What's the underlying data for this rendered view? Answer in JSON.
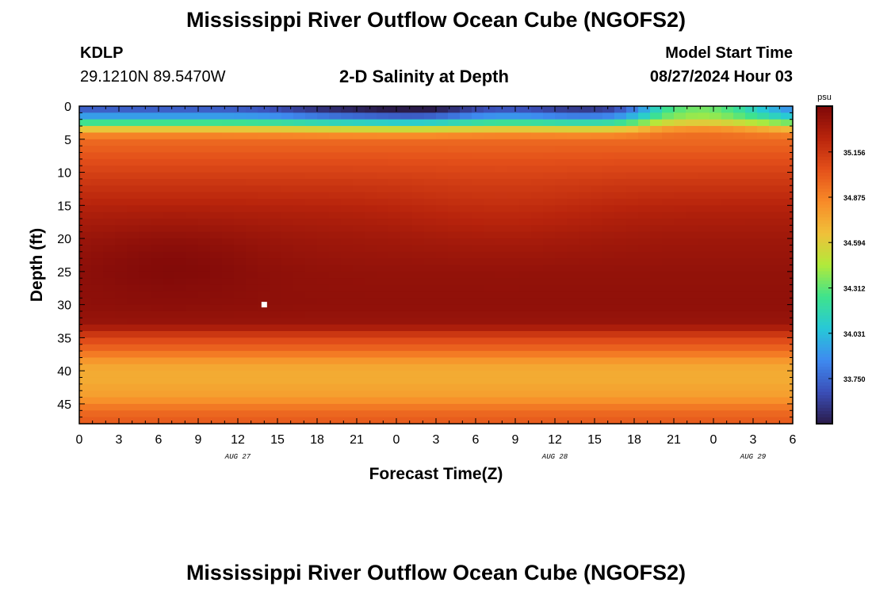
{
  "page": {
    "title": "Mississippi River Outflow Ocean Cube (NGOFS2)",
    "title_bottom": "Mississippi River Outflow Ocean Cube (NGOFS2)",
    "station_id": "KDLP",
    "station_coords": "29.1210N  89.5470W",
    "product": "2-D Salinity at Depth",
    "model_start_label": "Model Start Time",
    "model_start_value": "08/27/2024 Hour 03"
  },
  "chart_data": {
    "type": "heatmap",
    "xlabel": "Forecast Time(Z)",
    "ylabel": "Depth (ft)",
    "x_tick_labels": [
      "0",
      "3",
      "6",
      "9",
      "12",
      "15",
      "18",
      "21",
      "0",
      "3",
      "6",
      "9",
      "12",
      "15",
      "18",
      "21",
      "0",
      "3",
      "6"
    ],
    "x_range_hours": [
      0,
      54
    ],
    "date_labels": [
      {
        "text": "AUG 27",
        "hour": 12
      },
      {
        "text": "AUG 28",
        "hour": 36
      },
      {
        "text": "AUG 29",
        "hour": 51
      }
    ],
    "y_ticks": [
      0,
      5,
      10,
      15,
      20,
      25,
      30,
      35,
      40,
      45
    ],
    "y_range_ft": [
      0,
      48
    ],
    "colorbar": {
      "unit": "psu",
      "min": 33.47,
      "max": 35.44,
      "ticks": [
        "35.156",
        "34.875",
        "34.594",
        "34.312",
        "34.031",
        "33.750"
      ],
      "colormap": [
        "#2a1b4a",
        "#3b4fb8",
        "#3e8af0",
        "#27c8d8",
        "#3fe38c",
        "#b2ea3a",
        "#f0c03a",
        "#f88a28",
        "#e4501a",
        "#b8240c",
        "#7e0808"
      ]
    },
    "marker": {
      "hour": 14,
      "depth_ft": 30
    },
    "salinity_profile": {
      "depths_ft": [
        0,
        1,
        2,
        3,
        4,
        5,
        8,
        12,
        16,
        20,
        25,
        30,
        33,
        34,
        35,
        37,
        39,
        41,
        44,
        46,
        48
      ],
      "values_psu": [
        33.65,
        33.8,
        34.05,
        34.45,
        34.8,
        34.95,
        35.05,
        35.17,
        35.27,
        35.33,
        35.37,
        35.38,
        35.35,
        35.22,
        35.1,
        34.95,
        34.75,
        34.72,
        34.78,
        34.95,
        35.02
      ]
    }
  }
}
